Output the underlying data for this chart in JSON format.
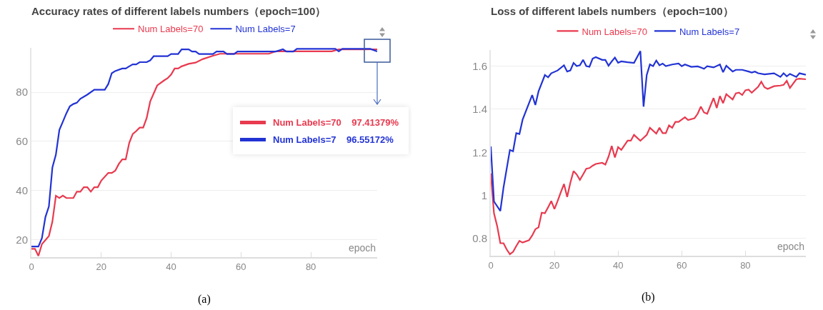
{
  "chart_data": [
    {
      "type": "line",
      "title": "Accuracy rates of different labels numbers（epoch=100）",
      "xlabel": "epoch",
      "xlim": [
        0,
        99
      ],
      "xticks": [
        0,
        20,
        40,
        60,
        80
      ],
      "ylim": [
        13,
        98
      ],
      "yticks": [
        20,
        40,
        60,
        80
      ],
      "grid": "y",
      "legend": "top",
      "marker": "none",
      "line_style": "solid",
      "series": [
        {
          "name": "Num Labels=70",
          "color": "#e83a4f",
          "x": [
            0,
            1,
            2,
            3,
            5,
            6,
            7,
            8,
            9,
            10,
            12,
            13,
            14,
            15,
            16,
            17,
            18,
            19,
            20,
            22,
            23,
            24,
            25,
            26,
            27,
            28,
            29,
            30,
            31,
            32,
            33,
            34,
            36,
            38,
            39,
            40,
            41,
            42,
            43,
            45,
            47,
            49,
            52,
            54,
            68,
            70,
            86,
            88,
            99
          ],
          "values": [
            16.4,
            16.4,
            13.5,
            18.3,
            21.6,
            27.4,
            37.9,
            37,
            38,
            37,
            37,
            39.6,
            39.6,
            41.4,
            41.4,
            39.6,
            41.4,
            41.4,
            44.1,
            47.2,
            47.2,
            48.1,
            50.8,
            52.7,
            52.7,
            59.4,
            63,
            64.2,
            65.6,
            65.6,
            69.5,
            76.2,
            82.7,
            84.8,
            85.7,
            87.2,
            89.6,
            89.6,
            90.5,
            91.5,
            92,
            93.4,
            94.8,
            95.6,
            95.6,
            96.6,
            96.6,
            97.4,
            97.41379
          ]
        },
        {
          "name": "Num Labels=7",
          "color": "#2233d4",
          "x": [
            0,
            2,
            3,
            4,
            5,
            6,
            7,
            8,
            9,
            10,
            11,
            12,
            13,
            14,
            16,
            18,
            21,
            22,
            23,
            24,
            26,
            27,
            28,
            29,
            30,
            31,
            33,
            34,
            35,
            39,
            40,
            42,
            43,
            45,
            46,
            47,
            48,
            52,
            53,
            55,
            56,
            58,
            59,
            70,
            72,
            73,
            75,
            76,
            87,
            88,
            89,
            97,
            99
          ],
          "values": [
            17.3,
            17.3,
            20.7,
            29.3,
            33.6,
            49.4,
            54.6,
            64.7,
            68,
            71.4,
            74.3,
            75.2,
            75.7,
            77.3,
            79,
            81,
            81,
            83.3,
            87.7,
            88.6,
            89.6,
            89.6,
            90.5,
            91.3,
            91.3,
            92.2,
            92.2,
            92.9,
            94.6,
            94.6,
            95.5,
            95.5,
            97.4,
            97.4,
            96.5,
            96.5,
            95.5,
            95.5,
            96.5,
            96.5,
            95.5,
            95.5,
            96.5,
            96.5,
            97.4,
            96.5,
            96.5,
            97.6,
            97.6,
            96.6,
            97.6,
            97.6,
            96.55172
          ]
        }
      ],
      "annotations": [
        "Num Labels=70    97.41379%",
        "Num Labels=7    96.55172%",
        "(a)"
      ]
    },
    {
      "type": "line",
      "title": "Loss of different labels numbers（epoch=100）",
      "xlabel": "epoch",
      "xlim": [
        0,
        99
      ],
      "xticks": [
        0,
        20,
        40,
        60,
        80
      ],
      "ylim": [
        0.72,
        1.675
      ],
      "yticks": [
        0.8,
        1,
        1.2,
        1.4,
        1.6
      ],
      "grid": "y",
      "legend": "top",
      "marker": "none",
      "line_style": "solid",
      "series": [
        {
          "name": "Num Labels=70",
          "color": "#e83a4f",
          "x": [
            0,
            1,
            2,
            3,
            4,
            5,
            6,
            7,
            8,
            9,
            10,
            12,
            13,
            14,
            15,
            16,
            17,
            18,
            19,
            20,
            21,
            22,
            23,
            24,
            25,
            26,
            27,
            28,
            29,
            30,
            31,
            32,
            33,
            35,
            36,
            37,
            38,
            39,
            40,
            41,
            42,
            43,
            44,
            45,
            47,
            49,
            50,
            52,
            53,
            54,
            55,
            56,
            57,
            58,
            59,
            61,
            62,
            64,
            65,
            66,
            67,
            68,
            70,
            71,
            72,
            73,
            74,
            76,
            77,
            78,
            79,
            80,
            81,
            82,
            84,
            85,
            86,
            87,
            89,
            91,
            92,
            93,
            94,
            96,
            97,
            99
          ],
          "values": [
            1.102,
            0.917,
            0.858,
            0.778,
            0.778,
            0.749,
            0.727,
            0.738,
            0.765,
            0.789,
            0.781,
            0.792,
            0.814,
            0.843,
            0.852,
            0.92,
            0.917,
            0.945,
            0.974,
            0.937,
            0.974,
            1.015,
            1.053,
            0.993,
            1.059,
            1.113,
            1.097,
            1.072,
            1.097,
            1.124,
            1.127,
            1.138,
            1.146,
            1.151,
            1.143,
            1.18,
            1.23,
            1.176,
            1.224,
            1.211,
            1.233,
            1.254,
            1.254,
            1.281,
            1.254,
            1.281,
            1.314,
            1.287,
            1.314,
            1.289,
            1.289,
            1.325,
            1.314,
            1.341,
            1.341,
            1.363,
            1.35,
            1.358,
            1.379,
            1.412,
            1.385,
            1.379,
            1.452,
            1.406,
            1.461,
            1.428,
            1.47,
            1.445,
            1.474,
            1.477,
            1.466,
            1.488,
            1.491,
            1.477,
            1.504,
            1.528,
            1.502,
            1.494,
            1.507,
            1.51,
            1.513,
            1.532,
            1.499,
            1.539,
            1.542,
            1.539
          ]
        },
        {
          "name": "Num Labels=7",
          "color": "#2233d4",
          "x": [
            0,
            1,
            3,
            4,
            6,
            7,
            8,
            9,
            10,
            13,
            14,
            15,
            17,
            18,
            19,
            21,
            23,
            24,
            25,
            26,
            27,
            28,
            29,
            30,
            31,
            32,
            33,
            35,
            36,
            37,
            38,
            39,
            40,
            41,
            43,
            45,
            47,
            48,
            49,
            50,
            51,
            52,
            53,
            54,
            55,
            57,
            59,
            60,
            61,
            63,
            65,
            66,
            67,
            68,
            70,
            72,
            73,
            74,
            76,
            77,
            79,
            81,
            82,
            83,
            84,
            86,
            89,
            91,
            92,
            93,
            94,
            96,
            97,
            99
          ],
          "values": [
            1.227,
            0.972,
            0.928,
            1.037,
            1.211,
            1.205,
            1.289,
            1.285,
            1.352,
            1.466,
            1.42,
            1.483,
            1.559,
            1.548,
            1.567,
            1.58,
            1.604,
            1.575,
            1.58,
            1.615,
            1.6,
            1.604,
            1.629,
            1.6,
            1.597,
            1.635,
            1.642,
            1.629,
            1.629,
            1.602,
            1.622,
            1.64,
            1.616,
            1.622,
            1.618,
            1.615,
            1.67,
            1.412,
            1.559,
            1.608,
            1.6,
            1.626,
            1.604,
            1.612,
            1.6,
            1.608,
            1.612,
            1.6,
            1.608,
            1.597,
            1.599,
            1.594,
            1.588,
            1.6,
            1.594,
            1.608,
            1.572,
            1.602,
            1.575,
            1.583,
            1.583,
            1.575,
            1.57,
            1.575,
            1.567,
            1.562,
            1.567,
            1.55,
            1.567,
            1.553,
            1.564,
            1.55,
            1.567,
            1.56
          ]
        }
      ],
      "annotations": [
        "(b)"
      ]
    }
  ]
}
